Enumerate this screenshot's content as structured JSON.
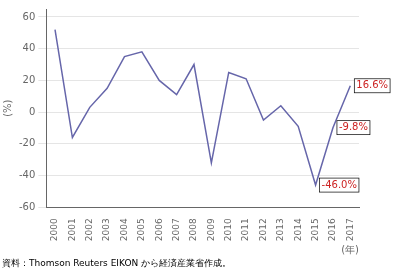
{
  "chart_data": {
    "type": "line",
    "x": [
      2000,
      2001,
      2002,
      2003,
      2004,
      2005,
      2006,
      2007,
      2008,
      2009,
      2010,
      2011,
      2012,
      2013,
      2014,
      2015,
      2016,
      2017
    ],
    "values": [
      52.0,
      -16.0,
      3.0,
      15.0,
      35.0,
      38.0,
      20.0,
      11.0,
      30.0,
      -32.0,
      25.0,
      21.0,
      -5.0,
      4.0,
      -9.0,
      -46.0,
      -9.8,
      16.6
    ],
    "color": "#6666aa",
    "xlabel": "(年)",
    "ylabel": "(%)",
    "caption": "資料：Thomson Reuters EIKON から経済産業省作成。",
    "xlim": [
      1999.5,
      2017.5
    ],
    "xticks": [
      2000,
      2001,
      2002,
      2003,
      2004,
      2005,
      2006,
      2007,
      2008,
      2009,
      2010,
      2011,
      2012,
      2013,
      2014,
      2015,
      2016,
      2017
    ],
    "ylim": [
      -60,
      65
    ],
    "yticks": [
      -60,
      -40,
      -20,
      0,
      20,
      40,
      60
    ],
    "grid": true,
    "annotations": [
      {
        "x": 2017,
        "y": 16.6,
        "text": "16.6%",
        "color": "#cc2222"
      },
      {
        "x": 2016,
        "y": -9.8,
        "text": "-9.8%",
        "color": "#cc2222"
      },
      {
        "x": 2015,
        "y": -46.0,
        "text": "-46.0%",
        "color": "#cc2222"
      }
    ]
  }
}
